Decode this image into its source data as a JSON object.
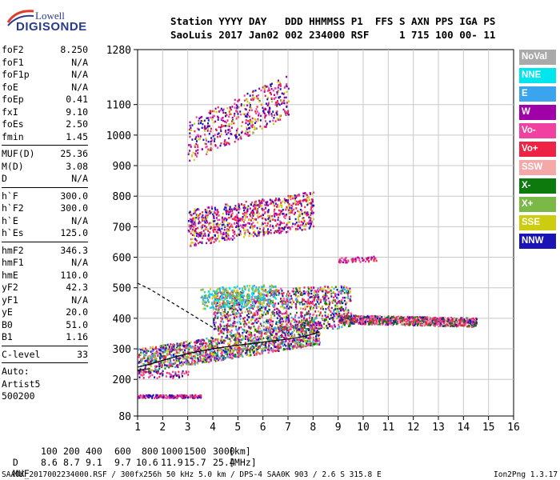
{
  "logo": {
    "line1": "Lowell",
    "line2": "DIGISONDE"
  },
  "header": {
    "line1": "Station YYYY DAY   DDD HHMMSS P1  FFS S AXN PPS IGA PS",
    "line2": "SaoLuis 2017 Jan02 002 234000 RSF     1 715 100 00- 11"
  },
  "params": {
    "group1": [
      {
        "key": "foF2",
        "value": "8.250"
      },
      {
        "key": "foF1",
        "value": "N/A"
      },
      {
        "key": "foF1p",
        "value": "N/A"
      },
      {
        "key": "foE",
        "value": "N/A"
      },
      {
        "key": "foEp",
        "value": "0.41"
      },
      {
        "key": "fxI",
        "value": "9.10"
      },
      {
        "key": "foEs",
        "value": "2.50"
      },
      {
        "key": "fmin",
        "value": "1.45"
      }
    ],
    "group2": [
      {
        "key": "MUF(D)",
        "value": "25.36"
      },
      {
        "key": "M(D)",
        "value": "3.08"
      },
      {
        "key": "D",
        "value": "N/A"
      }
    ],
    "group3": [
      {
        "key": "h`F",
        "value": "300.0"
      },
      {
        "key": "h`F2",
        "value": "300.0"
      },
      {
        "key": "h`E",
        "value": "N/A"
      },
      {
        "key": "h`Es",
        "value": "125.0"
      }
    ],
    "group4": [
      {
        "key": "hmF2",
        "value": "346.3"
      },
      {
        "key": "hmF1",
        "value": "N/A"
      },
      {
        "key": "hmE",
        "value": "110.0"
      },
      {
        "key": "yF2",
        "value": "42.3"
      },
      {
        "key": "yF1",
        "value": "N/A"
      },
      {
        "key": "yE",
        "value": "20.0"
      },
      {
        "key": "B0",
        "value": "51.0"
      },
      {
        "key": "B1",
        "value": "1.16"
      }
    ],
    "clevel": {
      "key": "C-level",
      "value": "33"
    },
    "scaler": [
      "Auto:",
      "Artist5",
      "500200"
    ]
  },
  "legend": [
    {
      "label": "NoVal",
      "color": "#aaaaaa"
    },
    {
      "label": "NNE",
      "color": "#00e5ee"
    },
    {
      "label": "E",
      "color": "#3aa5ee"
    },
    {
      "label": "W",
      "color": "#a000a8"
    },
    {
      "label": "Vo-",
      "color": "#f040a0"
    },
    {
      "label": "Vo+",
      "color": "#ee2244"
    },
    {
      "label": "SSW",
      "color": "#f4a8a8"
    },
    {
      "label": "X-",
      "color": "#0c7a0c"
    },
    {
      "label": "X+",
      "color": "#7ab848"
    },
    {
      "label": "SSE",
      "color": "#cccc10"
    },
    {
      "label": "NNW",
      "color": "#1a14b4"
    }
  ],
  "muf_table": {
    "d_label": "D",
    "d_values": [
      "100",
      "200",
      "400",
      "600",
      "800",
      "1000",
      "1500",
      "3000"
    ],
    "d_unit": "[km]",
    "muf_label": "MUF",
    "muf_values": [
      "8.6",
      "8.7",
      "9.1",
      "9.7",
      "10.6",
      "11.9",
      "15.7",
      "25.4"
    ],
    "muf_unit": "[MHz]"
  },
  "footer": {
    "left": "SAA0K_2017002234000.RSF / 300fx256h 50 kHz 5.0 km / DPS-4 SAA0K 903 / 2.6 S 315.8 E",
    "right": "Ion2Png 1.3.17"
  },
  "chart_data": {
    "type": "scatter",
    "title": "",
    "xlabel": "",
    "ylabel": "",
    "xlim": [
      1,
      16
    ],
    "ylim": [
      80,
      1280
    ],
    "x_ticks": [
      1,
      2,
      3,
      4,
      5,
      6,
      7,
      8,
      9,
      10,
      11,
      12,
      13,
      14,
      15,
      16
    ],
    "y_ticks": [
      80,
      200,
      300,
      400,
      500,
      600,
      700,
      800,
      900,
      1000,
      1100,
      1280
    ],
    "grid": true,
    "traces": [
      {
        "name": "profile",
        "x": [
          1.0,
          1.5,
          2.0,
          3.0,
          4.0,
          5.0,
          6.0,
          7.0,
          7.6,
          8.0,
          8.25
        ],
        "y": [
          240,
          250,
          262,
          285,
          300,
          312,
          322,
          332,
          340,
          348,
          356
        ],
        "color": "#000000",
        "style": "solid"
      },
      {
        "name": "profile-dashed",
        "x": [
          1.0,
          1.5,
          2.0,
          2.5,
          3.0,
          3.5,
          4.0
        ],
        "y": [
          515,
          495,
          470,
          445,
          420,
          395,
          370
        ],
        "color": "#000000",
        "style": "dashed"
      },
      {
        "name": "E-layer-marks",
        "x": [
          1.0,
          1.5
        ],
        "y": [
          230,
          235
        ],
        "color": "#000000",
        "style": "solid"
      }
    ],
    "echo_clusters": [
      {
        "name": "F2 O-trace",
        "x_range": [
          1.0,
          8.25
        ],
        "y_base": [
          250,
          345
        ],
        "spread": 40,
        "count": 1500,
        "colors": [
          "#ee2244",
          "#f040a0",
          "#0c7a0c",
          "#a000a8",
          "#1a14b4",
          "#cccc10",
          "#7ab848",
          "#3aa5ee"
        ]
      },
      {
        "name": "F2 X-trace",
        "x_range": [
          4.0,
          9.5
        ],
        "y_base": [
          400,
          420
        ],
        "spread": 70,
        "count": 1200,
        "colors": [
          "#ee2244",
          "#f040a0",
          "#a000a8",
          "#0c7a0c",
          "#1a14b4",
          "#cccc10",
          "#3aa5ee"
        ]
      },
      {
        "name": "spread-F",
        "x_range": [
          9.0,
          14.5
        ],
        "y_base": [
          395,
          385
        ],
        "spread": 14,
        "count": 1100,
        "colors": [
          "#ee2244",
          "#f040a0",
          "#f4a8a8",
          "#0c7a0c",
          "#1a14b4"
        ]
      },
      {
        "name": "second hop",
        "x_range": [
          3.0,
          8.0
        ],
        "y_base": [
          680,
          740
        ],
        "spread": 60,
        "count": 900,
        "colors": [
          "#ee2244",
          "#f040a0",
          "#a000a8",
          "#1a14b4",
          "#cccc10"
        ]
      },
      {
        "name": "third hop",
        "x_range": [
          3.0,
          7.0
        ],
        "y_base": [
          960,
          1110
        ],
        "spread": 70,
        "count": 500,
        "colors": [
          "#ee2244",
          "#f040a0",
          "#a000a8",
          "#1a14b4",
          "#cccc10"
        ]
      },
      {
        "name": "Es",
        "x_range": [
          1.0,
          3.5
        ],
        "y_base": [
          145,
          145
        ],
        "spread": 5,
        "count": 160,
        "colors": [
          "#1a14b4",
          "#a000a8",
          "#f040a0",
          "#ee2244"
        ]
      },
      {
        "name": "E-layer",
        "x_range": [
          1.0,
          3.0
        ],
        "y_base": [
          215,
          215
        ],
        "spread": 12,
        "count": 70,
        "colors": [
          "#1a14b4",
          "#ee2244",
          "#f040a0"
        ]
      },
      {
        "name": "oblique",
        "x_range": [
          3.5,
          6.5
        ],
        "y_base": [
          455,
          470
        ],
        "spread": 35,
        "count": 350,
        "colors": [
          "#3aa5ee",
          "#cccc10",
          "#7ab848",
          "#00e5ee"
        ]
      },
      {
        "name": "upper oblique",
        "x_range": [
          9.0,
          10.5
        ],
        "y_base": [
          590,
          595
        ],
        "spread": 8,
        "count": 60,
        "colors": [
          "#a000a8",
          "#f040a0",
          "#ee2244"
        ]
      }
    ]
  }
}
